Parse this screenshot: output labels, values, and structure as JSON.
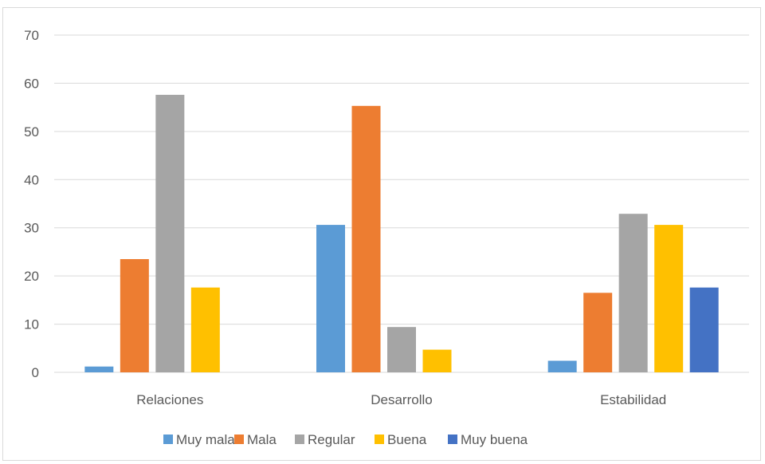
{
  "chart_data": {
    "type": "bar",
    "title": "",
    "xlabel": "",
    "ylabel": "",
    "ylim": [
      0,
      70
    ],
    "yticks": [
      0,
      10,
      20,
      30,
      40,
      50,
      60,
      70
    ],
    "grid": true,
    "legend_position": "bottom",
    "categories": [
      "Relaciones",
      "Desarrollo",
      "Estabilidad"
    ],
    "series": [
      {
        "name": "Muy mala",
        "color": "#5b9bd5",
        "values": [
          1.2,
          30.6,
          2.4
        ]
      },
      {
        "name": "Mala",
        "color": "#ed7d31",
        "values": [
          23.5,
          55.3,
          16.5
        ]
      },
      {
        "name": "Regular",
        "color": "#a5a5a5",
        "values": [
          57.6,
          9.4,
          32.9
        ]
      },
      {
        "name": "Buena",
        "color": "#ffc000",
        "values": [
          17.6,
          4.7,
          30.6
        ]
      },
      {
        "name": "Muy buena",
        "color": "#4472c4",
        "values": [
          0,
          0,
          17.6
        ]
      }
    ]
  }
}
